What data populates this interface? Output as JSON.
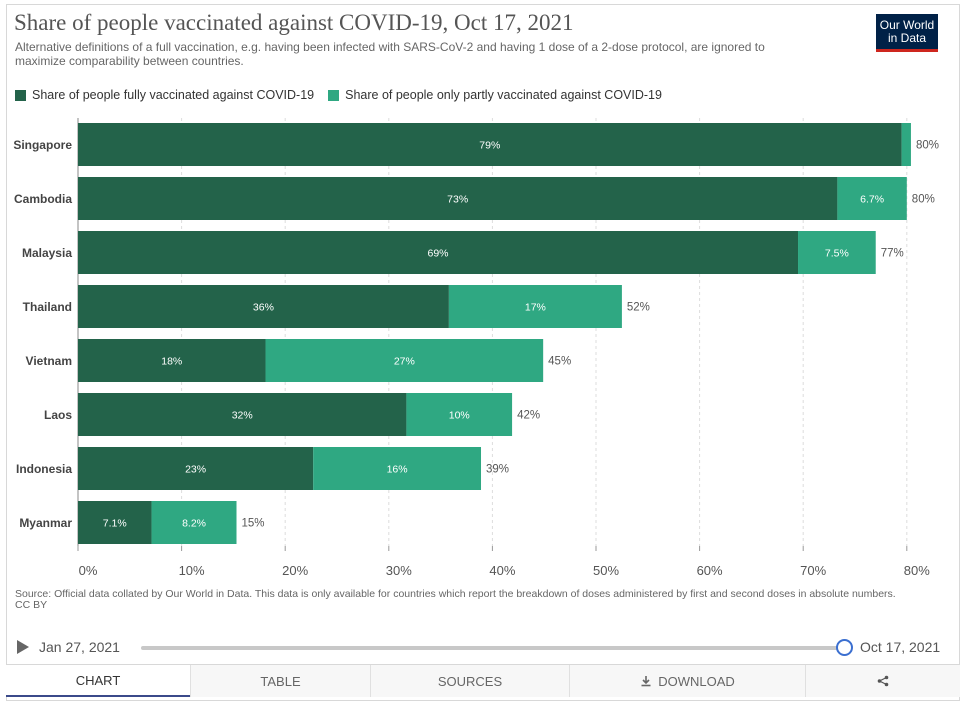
{
  "header": {
    "title": "Share of people vaccinated against COVID-19, Oct 17, 2021",
    "subtitle": "Alternative definitions of a full vaccination, e.g. having been infected with SARS-CoV-2 and having 1 dose of a 2-dose protocol, are ignored to maximize comparability between countries.",
    "logo_line1": "Our World",
    "logo_line2": "in Data"
  },
  "legend": [
    {
      "label": "Share of people fully vaccinated against COVID-19",
      "color": "#23634a"
    },
    {
      "label": "Share of people only partly vaccinated against COVID-19",
      "color": "#2fa882"
    }
  ],
  "chart_data": {
    "type": "bar",
    "orientation": "horizontal",
    "stacked": true,
    "categories": [
      "Singapore",
      "Cambodia",
      "Malaysia",
      "Thailand",
      "Vietnam",
      "Laos",
      "Indonesia",
      "Myanmar"
    ],
    "series": [
      {
        "name": "Share of people fully vaccinated against COVID-19",
        "color": "#23634a",
        "values": [
          79.5,
          73.3,
          69.5,
          35.8,
          18.1,
          31.7,
          22.7,
          7.1
        ],
        "labels": [
          "79%",
          "73%",
          "69%",
          "36%",
          "18%",
          "32%",
          "23%",
          "7.1%"
        ]
      },
      {
        "name": "Share of people only partly vaccinated against COVID-19",
        "color": "#2fa882",
        "values": [
          0.9,
          6.7,
          7.5,
          16.7,
          26.8,
          10.2,
          16.2,
          8.2
        ],
        "labels": [
          "",
          "6.7%",
          "7.5%",
          "17%",
          "27%",
          "10%",
          "16%",
          "8.2%"
        ]
      }
    ],
    "totals": [
      "80%",
      "80%",
      "77%",
      "52%",
      "45%",
      "42%",
      "39%",
      "15%"
    ],
    "xlim": [
      0,
      80
    ],
    "xticks": [
      0,
      10,
      20,
      30,
      40,
      50,
      60,
      70,
      80
    ],
    "xtick_labels": [
      "0%",
      "10%",
      "20%",
      "30%",
      "40%",
      "50%",
      "60%",
      "70%",
      "80%"
    ],
    "grid": true,
    "legend_position": "top-left"
  },
  "footer": {
    "source": "Source: Official data collated by Our World in Data. This data is only available for countries which report the breakdown of doses administered by first and second doses in absolute numbers.",
    "license": "CC BY"
  },
  "timeline": {
    "start": "Jan 27, 2021",
    "end": "Oct 17, 2021"
  },
  "tabs": [
    {
      "label": "CHART",
      "icon": ""
    },
    {
      "label": "TABLE",
      "icon": ""
    },
    {
      "label": "SOURCES",
      "icon": ""
    },
    {
      "label": "DOWNLOAD",
      "icon": "download-icon"
    },
    {
      "label": "",
      "icon": "share-icon"
    }
  ]
}
